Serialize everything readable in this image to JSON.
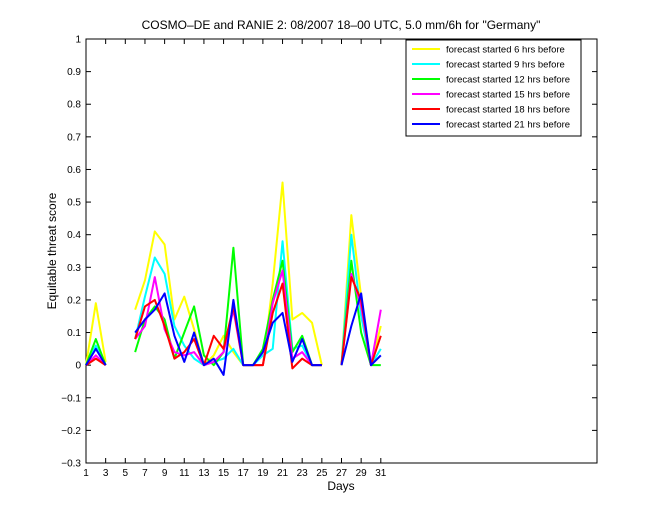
{
  "chart_data": {
    "type": "line",
    "title": "COSMO–DE and RANIE 2: 08/2007 18–00 UTC, 5.0 mm/6h for \"Germany\"",
    "xlabel": "Days",
    "ylabel": "Equitable threat score",
    "xlim": [
      1,
      53
    ],
    "ylim": [
      -0.3,
      1
    ],
    "xticks": [
      1,
      3,
      5,
      7,
      9,
      11,
      13,
      15,
      17,
      19,
      21,
      23,
      25,
      27,
      29,
      31
    ],
    "yticks": [
      -0.3,
      -0.2,
      -0.1,
      0,
      0.1,
      0.2,
      0.3,
      0.4,
      0.5,
      0.6,
      0.7,
      0.8,
      0.9,
      1
    ],
    "ytick_labels": [
      "−0.3",
      "−0.2",
      "−0.1",
      "0",
      "0.1",
      "0.2",
      "0.3",
      "0.4",
      "0.5",
      "0.6",
      "0.7",
      "0.8",
      "0.9",
      "1"
    ],
    "grid": false,
    "legend_position": "top-right",
    "x": [
      1,
      2,
      3,
      4,
      5,
      6,
      7,
      8,
      9,
      10,
      11,
      12,
      13,
      14,
      15,
      16,
      17,
      18,
      19,
      20,
      21,
      22,
      23,
      24,
      25,
      26,
      27,
      28,
      29,
      30,
      31
    ],
    "series": [
      {
        "name": "forecast started 6 hrs before",
        "color": "#ffff00",
        "values": [
          0.0,
          0.19,
          0.01,
          null,
          null,
          0.17,
          0.26,
          0.41,
          0.37,
          0.14,
          0.21,
          0.11,
          0.0,
          0.03,
          0.09,
          0.04,
          0.0,
          0.0,
          0.0,
          0.25,
          0.56,
          0.14,
          0.16,
          0.13,
          0.0,
          null,
          0.0,
          0.46,
          0.21,
          0.0,
          0.12
        ]
      },
      {
        "name": "forecast started 9 hrs before",
        "color": "#00ffff",
        "values": [
          0.0,
          0.06,
          0.0,
          null,
          null,
          0.08,
          0.21,
          0.33,
          0.28,
          0.12,
          0.06,
          0.02,
          0.0,
          0.01,
          0.02,
          0.05,
          0.0,
          0.0,
          0.03,
          0.05,
          0.38,
          0.05,
          0.06,
          0.0,
          0.0,
          null,
          0.0,
          0.4,
          0.15,
          0.0,
          0.05
        ]
      },
      {
        "name": "forecast started 12 hrs before",
        "color": "#00ff00",
        "values": [
          0.0,
          0.08,
          0.0,
          null,
          null,
          0.04,
          0.14,
          0.18,
          0.14,
          0.02,
          0.1,
          0.18,
          0.03,
          0.0,
          0.04,
          0.36,
          0.0,
          0.0,
          0.05,
          0.2,
          0.32,
          0.04,
          0.09,
          0.0,
          0.0,
          null,
          0.0,
          0.32,
          0.1,
          0.0,
          0.0
        ]
      },
      {
        "name": "forecast started 15 hrs before",
        "color": "#ff00ff",
        "values": [
          0.0,
          0.03,
          0.0,
          null,
          null,
          0.08,
          0.12,
          0.27,
          0.11,
          0.04,
          0.03,
          0.04,
          0.0,
          0.01,
          0.04,
          0.17,
          0.0,
          0.0,
          0.0,
          0.19,
          0.29,
          0.02,
          0.04,
          0.0,
          0.0,
          null,
          0.0,
          0.28,
          0.18,
          0.0,
          0.17
        ]
      },
      {
        "name": "forecast started 18 hrs before",
        "color": "#ff0000",
        "values": [
          0.0,
          0.02,
          0.0,
          null,
          null,
          0.08,
          0.18,
          0.2,
          0.12,
          0.02,
          0.04,
          0.08,
          0.0,
          0.09,
          0.05,
          0.18,
          0.0,
          0.0,
          0.0,
          0.16,
          0.25,
          -0.01,
          0.02,
          0.0,
          0.0,
          null,
          0.0,
          0.27,
          0.2,
          0.0,
          0.09
        ]
      },
      {
        "name": "forecast started 21 hrs before",
        "color": "#0000ff",
        "values": [
          0.0,
          0.05,
          0.0,
          null,
          null,
          0.1,
          0.14,
          0.17,
          0.22,
          0.09,
          0.01,
          0.1,
          0.0,
          0.02,
          -0.03,
          0.2,
          0.0,
          0.0,
          0.04,
          0.13,
          0.16,
          0.01,
          0.08,
          0.0,
          0.0,
          null,
          0.0,
          0.12,
          0.22,
          0.0,
          0.03
        ]
      }
    ]
  }
}
